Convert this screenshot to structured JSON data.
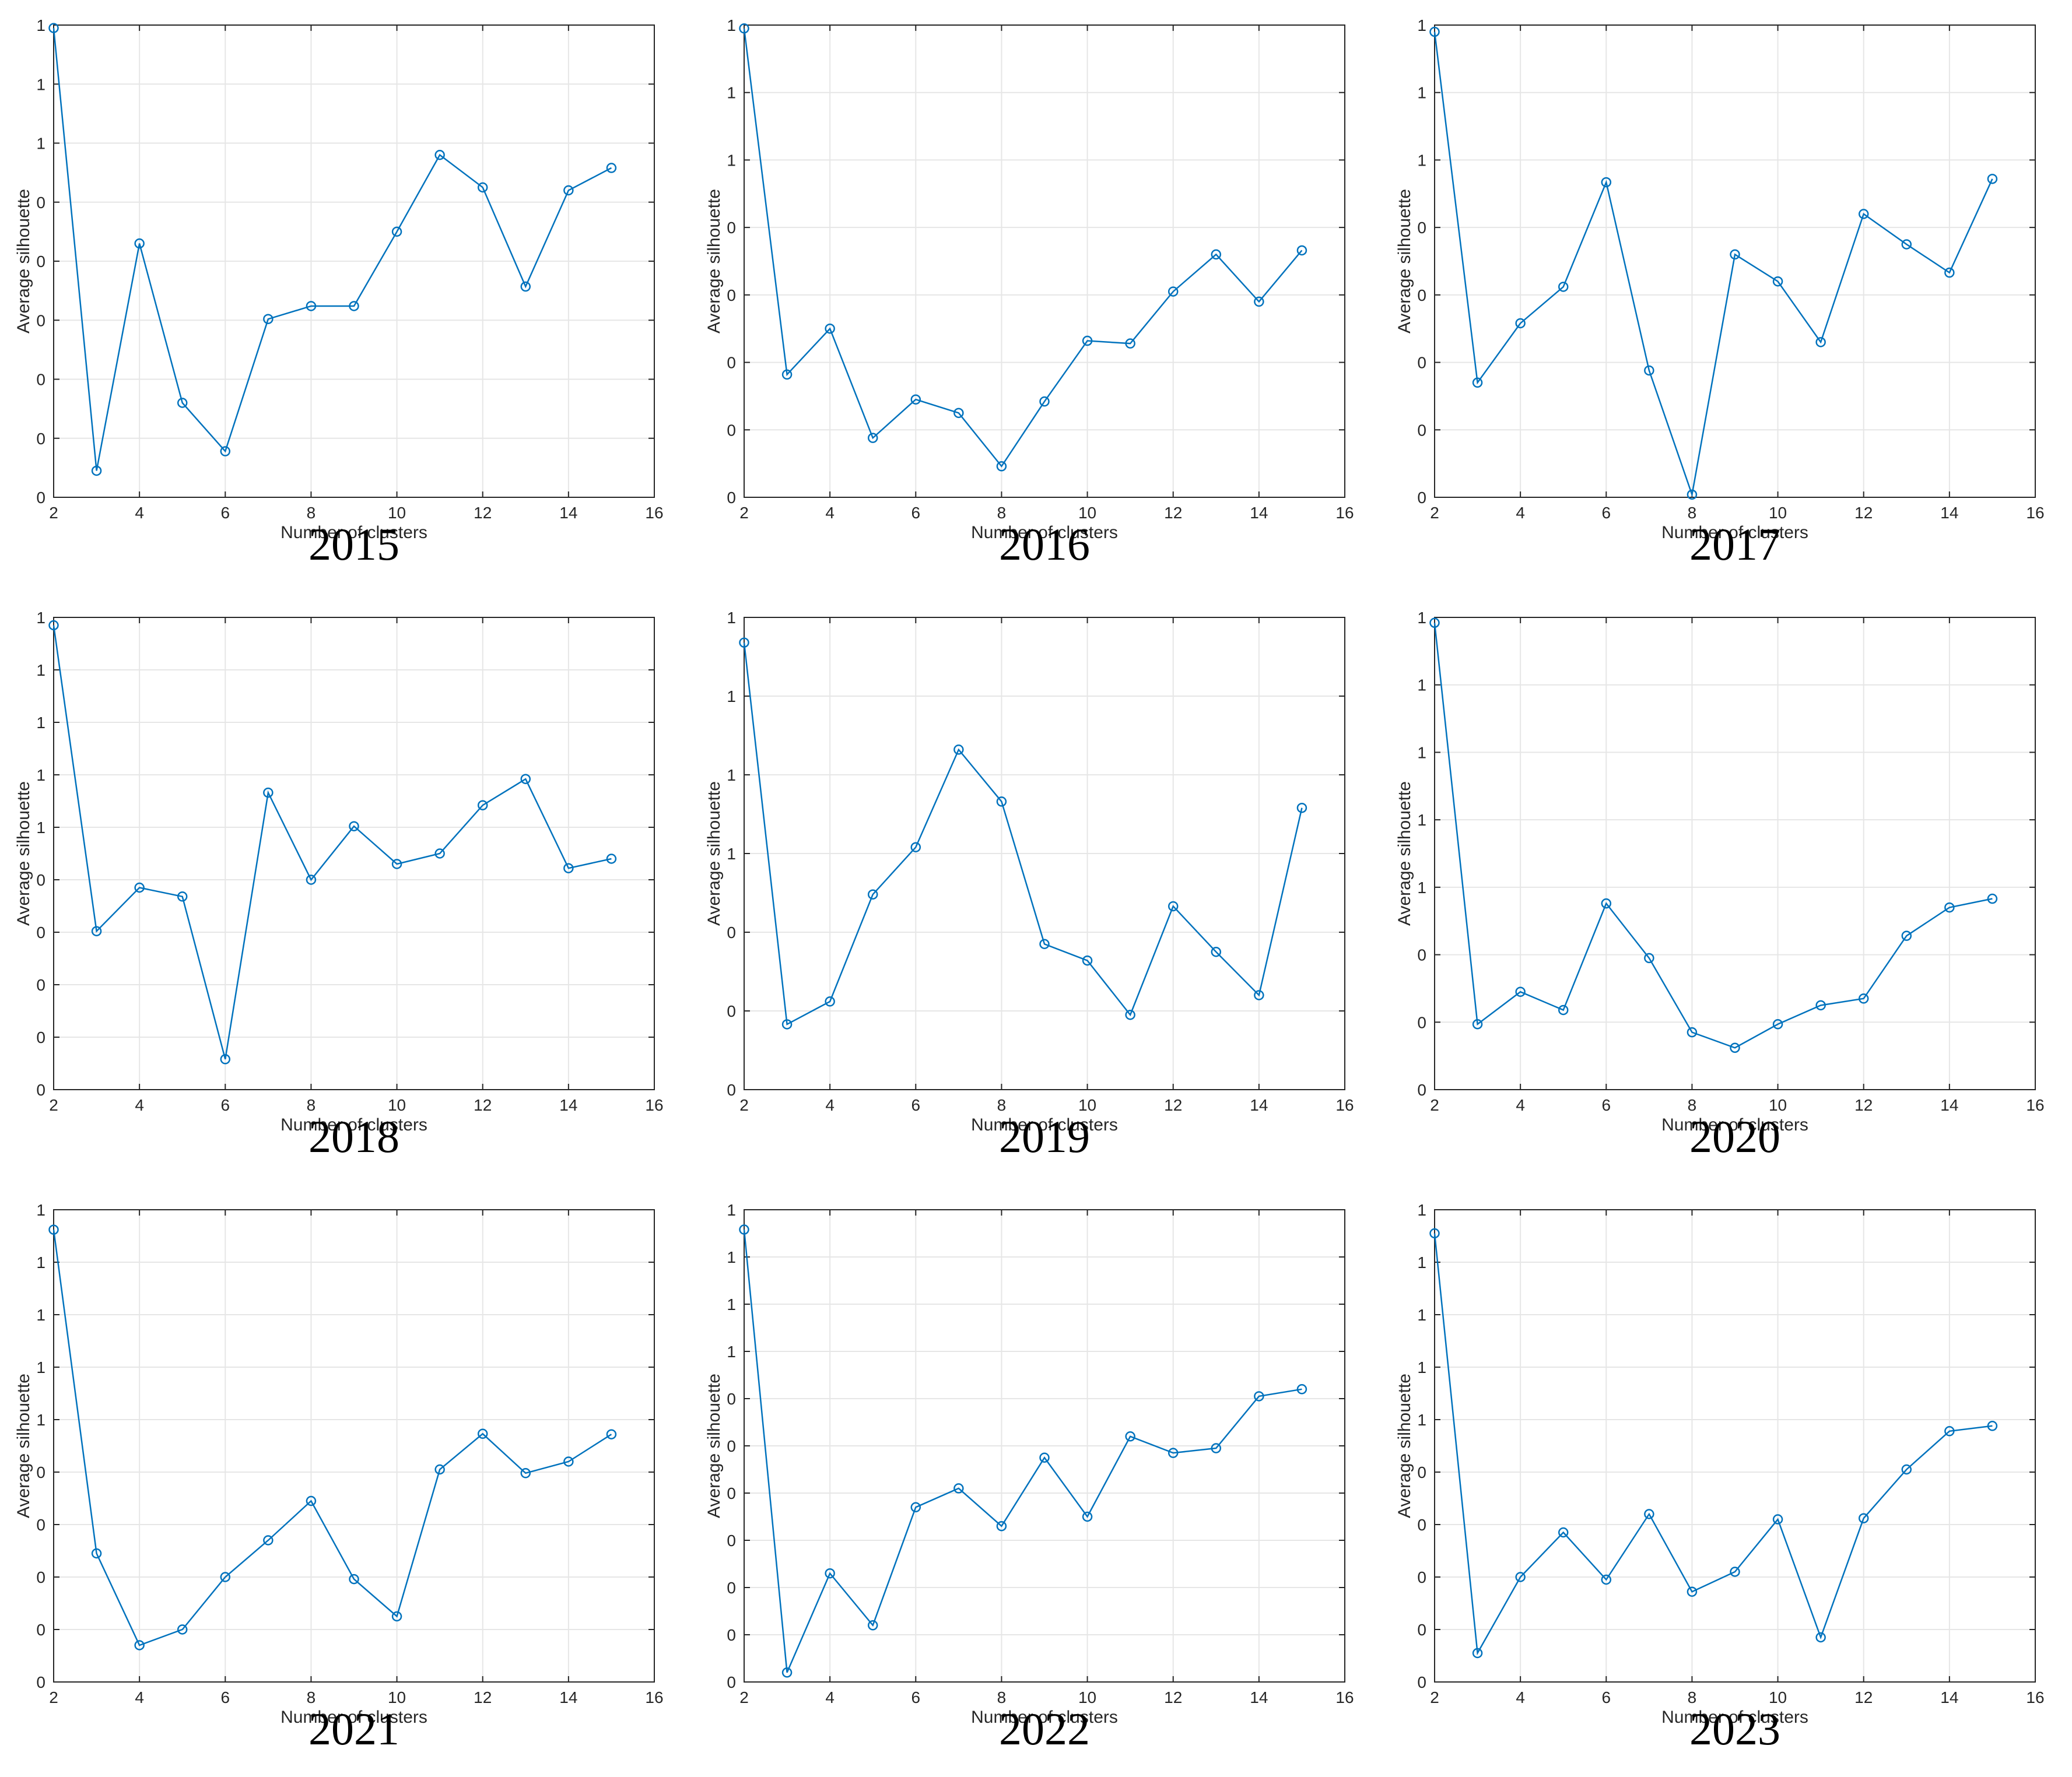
{
  "chart_data": [
    {
      "type": "line",
      "title": "2015",
      "xlabel": "Number of clusters",
      "ylabel": "Average silhouette",
      "xlim": [
        2,
        16
      ],
      "xticks": [
        2,
        4,
        6,
        8,
        10,
        12,
        14,
        16
      ],
      "ylim": [
        0,
        8
      ],
      "yticks": [
        0,
        1,
        2,
        3,
        4,
        5,
        6,
        7,
        8
      ],
      "ytick_labels": [
        "0",
        "0",
        "0",
        "0",
        "0",
        "0",
        "1",
        "1",
        "1"
      ],
      "grid": true,
      "marker": "circle",
      "color": "#0072BD",
      "x": [
        2,
        3,
        4,
        5,
        6,
        7,
        8,
        9,
        10,
        11,
        12,
        13,
        14,
        15
      ],
      "y": [
        7.95,
        0.45,
        4.3,
        1.6,
        0.78,
        3.02,
        3.24,
        3.24,
        4.5,
        5.8,
        5.25,
        3.57,
        5.2,
        5.58
      ]
    },
    {
      "type": "line",
      "title": "2016",
      "xlabel": "Number of clusters",
      "ylabel": "Average silhouette",
      "xlim": [
        2,
        16
      ],
      "xticks": [
        2,
        4,
        6,
        8,
        10,
        12,
        14,
        16
      ],
      "ylim": [
        0,
        7
      ],
      "yticks": [
        0,
        1,
        2,
        3,
        4,
        5,
        6,
        7
      ],
      "ytick_labels": [
        "0",
        "0",
        "0",
        "0",
        "0",
        "1",
        "1",
        "1"
      ],
      "grid": true,
      "marker": "circle",
      "color": "#0072BD",
      "x": [
        2,
        3,
        4,
        5,
        6,
        7,
        8,
        9,
        10,
        11,
        12,
        13,
        14,
        15
      ],
      "y": [
        6.95,
        1.82,
        2.5,
        0.88,
        1.45,
        1.25,
        0.46,
        1.42,
        2.32,
        2.28,
        3.05,
        3.6,
        2.9,
        3.66
      ]
    },
    {
      "type": "line",
      "title": "2017",
      "xlabel": "Number of clusters",
      "ylabel": "Average silhouette",
      "xlim": [
        2,
        16
      ],
      "xticks": [
        2,
        4,
        6,
        8,
        10,
        12,
        14,
        16
      ],
      "ylim": [
        0,
        7
      ],
      "yticks": [
        0,
        1,
        2,
        3,
        4,
        5,
        6,
        7
      ],
      "ytick_labels": [
        "0",
        "0",
        "0",
        "0",
        "0",
        "1",
        "1",
        "1"
      ],
      "grid": true,
      "marker": "circle",
      "color": "#0072BD",
      "x": [
        2,
        3,
        4,
        5,
        6,
        7,
        8,
        9,
        10,
        11,
        12,
        13,
        14,
        15
      ],
      "y": [
        6.9,
        1.7,
        2.58,
        3.12,
        4.67,
        1.88,
        0.04,
        3.6,
        3.2,
        2.3,
        4.2,
        3.75,
        3.33,
        4.72
      ]
    },
    {
      "type": "line",
      "title": "2018",
      "xlabel": "Number of clusters",
      "ylabel": "Average silhouette",
      "xlim": [
        2,
        16
      ],
      "xticks": [
        2,
        4,
        6,
        8,
        10,
        12,
        14,
        16
      ],
      "ylim": [
        0,
        9
      ],
      "yticks": [
        0,
        1,
        2,
        3,
        4,
        5,
        6,
        7,
        8,
        9
      ],
      "ytick_labels": [
        "0",
        "0",
        "0",
        "0",
        "0",
        "1",
        "1",
        "1",
        "1",
        "1"
      ],
      "grid": true,
      "marker": "circle",
      "color": "#0072BD",
      "x": [
        2,
        3,
        4,
        5,
        6,
        7,
        8,
        9,
        10,
        11,
        12,
        13,
        14,
        15
      ],
      "y": [
        8.85,
        3.02,
        3.85,
        3.68,
        0.58,
        5.66,
        4.0,
        5.02,
        4.3,
        4.5,
        5.42,
        5.92,
        4.22,
        4.4
      ]
    },
    {
      "type": "line",
      "title": "2019",
      "xlabel": "Number of clusters",
      "ylabel": "Average silhouette",
      "xlim": [
        2,
        16
      ],
      "xticks": [
        2,
        4,
        6,
        8,
        10,
        12,
        14,
        16
      ],
      "ylim": [
        0,
        6
      ],
      "yticks": [
        0,
        1,
        2,
        3,
        4,
        5,
        6
      ],
      "ytick_labels": [
        "0",
        "0",
        "0",
        "1",
        "1",
        "1",
        "1"
      ],
      "grid": true,
      "marker": "circle",
      "color": "#0072BD",
      "x": [
        2,
        3,
        4,
        5,
        6,
        7,
        8,
        9,
        10,
        11,
        12,
        13,
        14,
        15
      ],
      "y": [
        5.68,
        0.83,
        1.12,
        2.48,
        3.08,
        4.32,
        3.66,
        1.85,
        1.64,
        0.95,
        2.33,
        1.75,
        1.2,
        3.58
      ]
    },
    {
      "type": "line",
      "title": "2020",
      "xlabel": "Number of clusters",
      "ylabel": "Average silhouette",
      "xlim": [
        2,
        16
      ],
      "xticks": [
        2,
        4,
        6,
        8,
        10,
        12,
        14,
        16
      ],
      "ylim": [
        0,
        7
      ],
      "yticks": [
        0,
        1,
        2,
        3,
        4,
        5,
        6,
        7
      ],
      "ytick_labels": [
        "0",
        "0",
        "0",
        "1",
        "1",
        "1",
        "1",
        "1"
      ],
      "grid": true,
      "marker": "circle",
      "color": "#0072BD",
      "x": [
        2,
        3,
        4,
        5,
        6,
        7,
        8,
        9,
        10,
        11,
        12,
        13,
        14,
        15
      ],
      "y": [
        6.92,
        0.97,
        1.45,
        1.18,
        2.76,
        1.95,
        0.85,
        0.62,
        0.97,
        1.25,
        1.35,
        2.28,
        2.7,
        2.83
      ]
    },
    {
      "type": "line",
      "title": "2021",
      "xlabel": "Number of clusters",
      "ylabel": "Average silhouette",
      "xlim": [
        2,
        16
      ],
      "xticks": [
        2,
        4,
        6,
        8,
        10,
        12,
        14,
        16
      ],
      "ylim": [
        0,
        9
      ],
      "yticks": [
        0,
        1,
        2,
        3,
        4,
        5,
        6,
        7,
        8,
        9
      ],
      "ytick_labels": [
        "0",
        "0",
        "0",
        "0",
        "0",
        "1",
        "1",
        "1",
        "1",
        "1"
      ],
      "grid": true,
      "marker": "circle",
      "color": "#0072BD",
      "x": [
        2,
        3,
        4,
        5,
        6,
        7,
        8,
        9,
        10,
        11,
        12,
        13,
        14,
        15
      ],
      "y": [
        8.62,
        2.45,
        0.7,
        1.0,
        2.0,
        2.7,
        3.45,
        1.96,
        1.25,
        4.05,
        4.73,
        3.98,
        4.2,
        4.72
      ]
    },
    {
      "type": "line",
      "title": "2022",
      "xlabel": "Number of clusters",
      "ylabel": "Average silhouette",
      "xlim": [
        2,
        16
      ],
      "xticks": [
        2,
        4,
        6,
        8,
        10,
        12,
        14,
        16
      ],
      "ylim": [
        0,
        10
      ],
      "yticks": [
        0,
        1,
        2,
        3,
        4,
        5,
        6,
        7,
        8,
        9,
        10
      ],
      "ytick_labels": [
        "0",
        "0",
        "0",
        "0",
        "0",
        "0",
        "0",
        "1",
        "1",
        "1",
        "1"
      ],
      "grid": true,
      "marker": "circle",
      "color": "#0072BD",
      "x": [
        2,
        3,
        4,
        5,
        6,
        7,
        8,
        9,
        10,
        11,
        12,
        13,
        14,
        15
      ],
      "y": [
        9.58,
        0.2,
        2.3,
        1.2,
        3.7,
        4.1,
        3.3,
        4.75,
        3.5,
        5.2,
        4.85,
        4.95,
        6.05,
        6.2
      ]
    },
    {
      "type": "line",
      "title": "2023",
      "xlabel": "Number of clusters",
      "ylabel": "Average silhouette",
      "xlim": [
        2,
        16
      ],
      "xticks": [
        2,
        4,
        6,
        8,
        10,
        12,
        14,
        16
      ],
      "ylim": [
        0,
        9
      ],
      "yticks": [
        0,
        1,
        2,
        3,
        4,
        5,
        6,
        7,
        8,
        9
      ],
      "ytick_labels": [
        "0",
        "0",
        "0",
        "0",
        "0",
        "1",
        "1",
        "1",
        "1",
        "1"
      ],
      "grid": true,
      "marker": "circle",
      "color": "#0072BD",
      "x": [
        2,
        3,
        4,
        5,
        6,
        7,
        8,
        9,
        10,
        11,
        12,
        13,
        14,
        15
      ],
      "y": [
        8.55,
        0.55,
        2.0,
        2.85,
        1.95,
        3.2,
        1.72,
        2.1,
        3.1,
        0.85,
        3.12,
        4.05,
        4.78,
        4.88
      ]
    }
  ]
}
